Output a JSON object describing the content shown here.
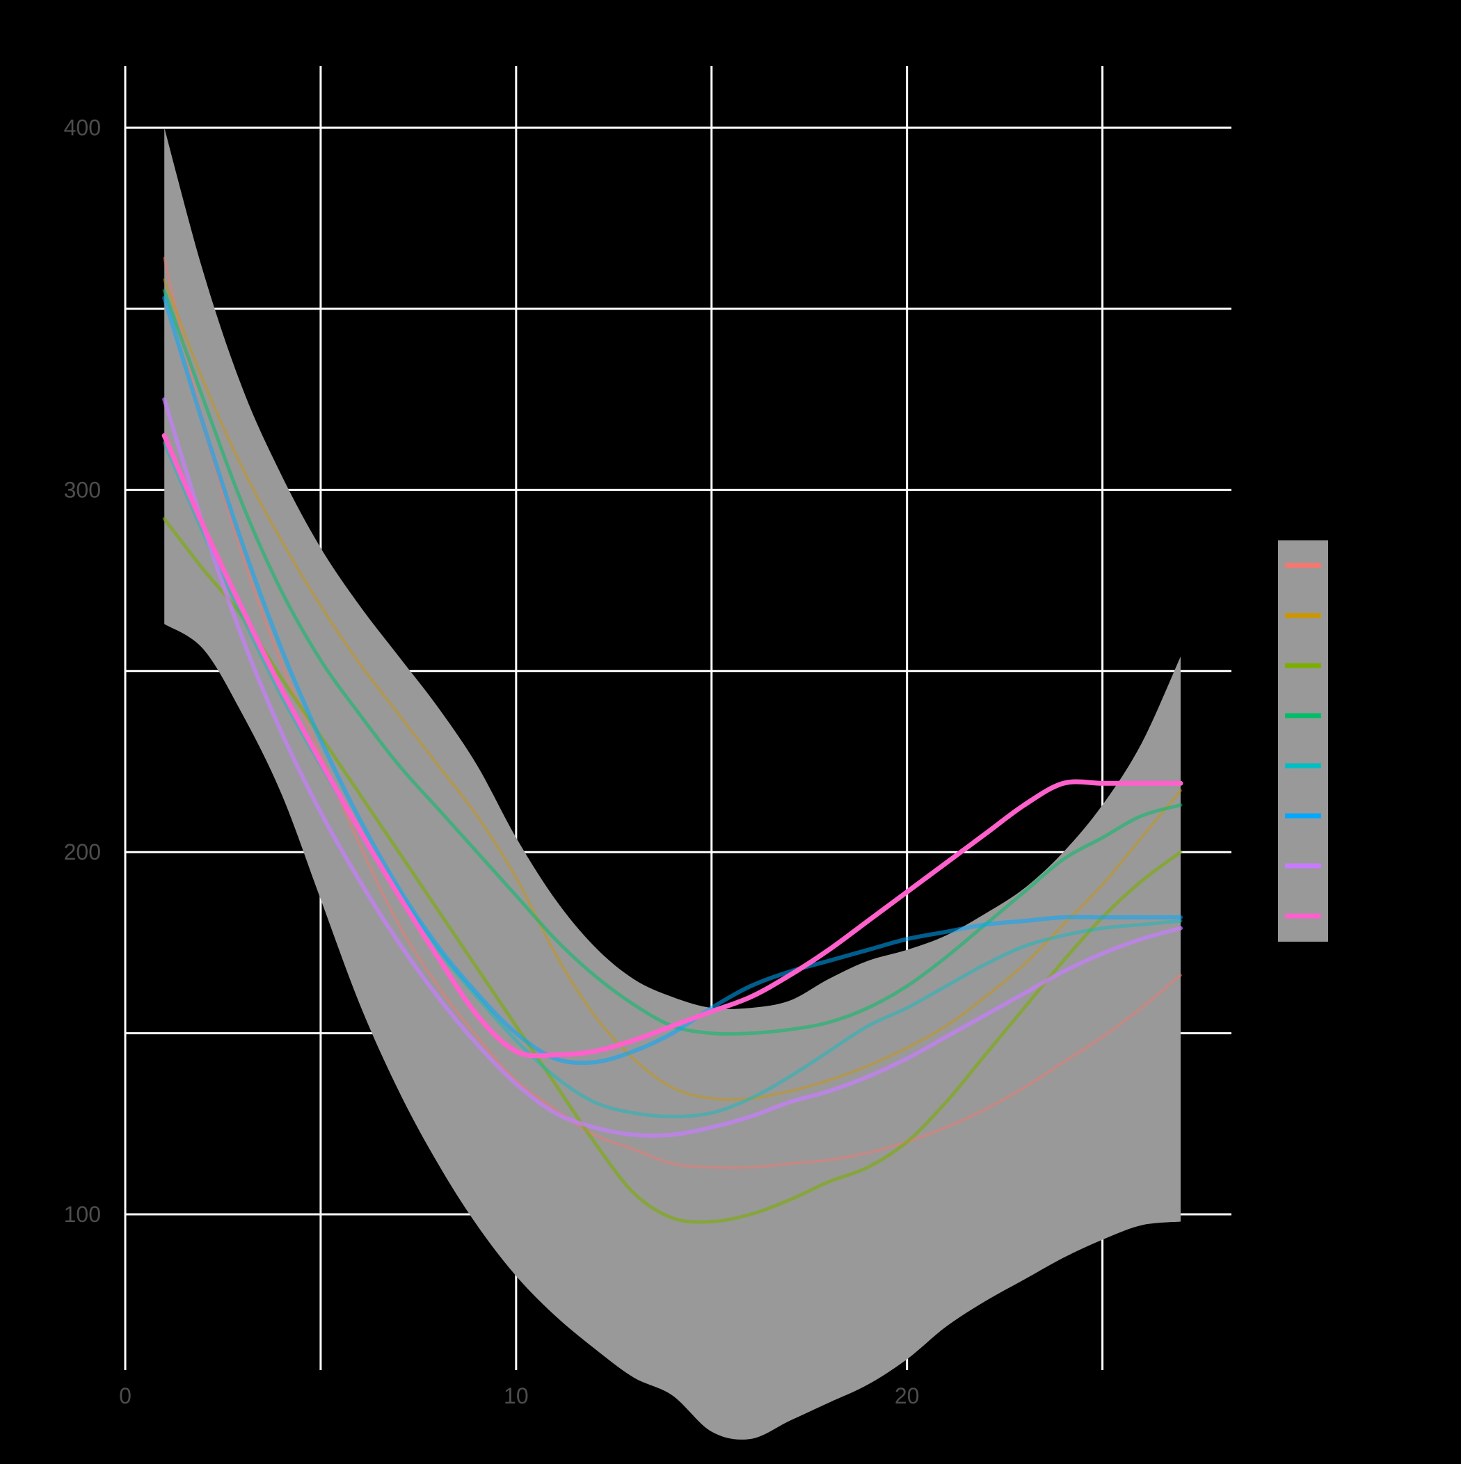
{
  "chart_data": {
    "type": "line",
    "title": "",
    "xlabel": "",
    "ylabel": "",
    "xlim": [
      0,
      28.3
    ],
    "ylim": [
      57,
      417
    ],
    "x_ticks": [
      0,
      10,
      20
    ],
    "x_minor_grid": [
      5,
      15,
      25
    ],
    "y_ticks": [
      100,
      200,
      300,
      400
    ],
    "y_minor_grid": [
      150,
      250,
      350
    ],
    "grid": true,
    "background": "#000000",
    "grid_color": "#ffffff",
    "tick_label_color": "#4d4d4d",
    "legend": {
      "position": "right",
      "title": "",
      "entries": [
        "",
        "",
        "",
        "",
        "",
        "",
        "",
        ""
      ]
    },
    "confidence_band": {
      "color": "#999999",
      "x": [
        1,
        2,
        3,
        4,
        5,
        6,
        7,
        8,
        9,
        10,
        11,
        12,
        13,
        14,
        15,
        16,
        17,
        18,
        19,
        20,
        21,
        22,
        23,
        24,
        25,
        26,
        27
      ],
      "upper": [
        400,
        360,
        328,
        304,
        284,
        268,
        254,
        240,
        224,
        204,
        187,
        174,
        165,
        160,
        157,
        157,
        159,
        165,
        170,
        173,
        177,
        183,
        190,
        200,
        213,
        230,
        254
      ],
      "lower": [
        263,
        256,
        238,
        216,
        187,
        158,
        134,
        114,
        97,
        83,
        72,
        63,
        55,
        50,
        40,
        38,
        43,
        48,
        53,
        60,
        69,
        76,
        82,
        88,
        93,
        97,
        98
      ]
    },
    "x": [
      1,
      2,
      3,
      4,
      5,
      6,
      7,
      8,
      9,
      10,
      11,
      12,
      13,
      14,
      15,
      16,
      17,
      18,
      19,
      20,
      21,
      22,
      23,
      24,
      25,
      26,
      27
    ],
    "series": [
      {
        "color": "#F8766D",
        "opacity": 0.45,
        "width": 4,
        "values": [
          364,
          318,
          282,
          252,
          227,
          202,
          180,
          163,
          149,
          137,
          129,
          122,
          118,
          114,
          113,
          113,
          114,
          115,
          117,
          120,
          124,
          129,
          135,
          142,
          149,
          157,
          166
        ]
      },
      {
        "color": "#CD9600",
        "opacity": 0.45,
        "width": 4,
        "values": [
          358,
          330,
          306,
          286,
          268,
          252,
          238,
          224,
          210,
          193,
          172,
          155,
          143,
          135,
          132,
          132,
          134,
          137,
          141,
          146,
          152,
          160,
          169,
          180,
          191,
          204,
          217
        ]
      },
      {
        "color": "#7CAE00",
        "opacity": 0.6,
        "width": 5,
        "values": [
          292,
          278,
          265,
          248,
          232,
          216,
          200,
          184,
          168,
          152,
          136,
          120,
          106,
          99,
          98,
          100,
          104,
          109,
          113,
          120,
          131,
          144,
          157,
          170,
          182,
          192,
          200
        ]
      },
      {
        "color": "#00BE67",
        "opacity": 0.55,
        "width": 5,
        "values": [
          355,
          325,
          296,
          272,
          253,
          238,
          224,
          212,
          200,
          188,
          176,
          166,
          158,
          152,
          150,
          150,
          151,
          153,
          157,
          163,
          171,
          180,
          189,
          198,
          204,
          210,
          213
        ]
      },
      {
        "color": "#00BFC4",
        "opacity": 0.45,
        "width": 5,
        "values": [
          313,
          288,
          265,
          243,
          224,
          206,
          189,
          173,
          160,
          148,
          138,
          131,
          128,
          127,
          128,
          132,
          138,
          145,
          152,
          157,
          163,
          169,
          174,
          177,
          179,
          180,
          181
        ]
      },
      {
        "color": "#00A9FF",
        "opacity": 0.55,
        "width": 6,
        "values": [
          353,
          318,
          285,
          256,
          231,
          209,
          190,
          174,
          161,
          150,
          143,
          142,
          145,
          150,
          157,
          163,
          167,
          170,
          173,
          176,
          178,
          180,
          181,
          182,
          182,
          182,
          182
        ]
      },
      {
        "color": "#C77CFF",
        "opacity": 0.7,
        "width": 6,
        "values": [
          325,
          290,
          259,
          233,
          211,
          192,
          175,
          160,
          147,
          136,
          128,
          124,
          122,
          122,
          124,
          127,
          131,
          134,
          138,
          143,
          149,
          155,
          161,
          167,
          172,
          176,
          179
        ]
      },
      {
        "color": "#FF61CC",
        "opacity": 1.0,
        "width": 7,
        "values": [
          315,
          290,
          267,
          245,
          225,
          206,
          188,
          171,
          155,
          145,
          144,
          145,
          148,
          152,
          156,
          160,
          166,
          173,
          181,
          189,
          197,
          205,
          213,
          219,
          219,
          219,
          219
        ]
      }
    ]
  }
}
